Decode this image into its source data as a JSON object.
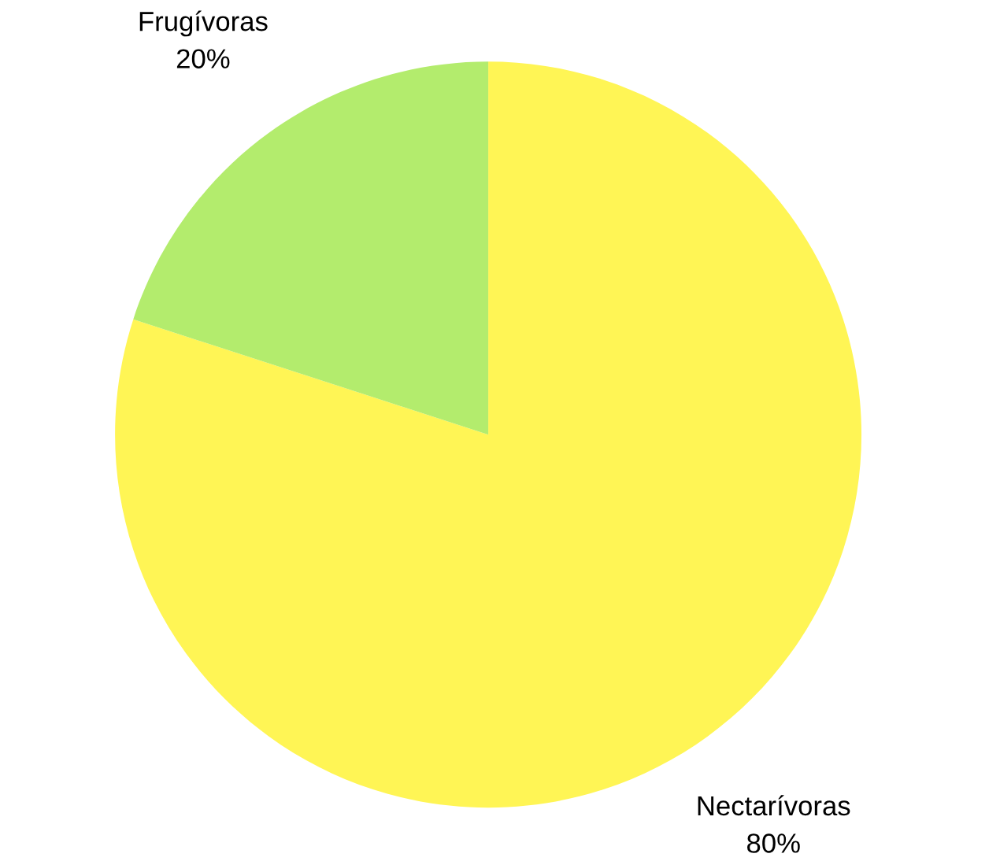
{
  "chart_data": {
    "type": "pie",
    "categories": [
      "Nectarívoras",
      "Frugívoras"
    ],
    "values": [
      80,
      20
    ],
    "value_labels": [
      "80%",
      "20%"
    ],
    "colors": [
      "#fff555",
      "#b3ec6d"
    ]
  }
}
